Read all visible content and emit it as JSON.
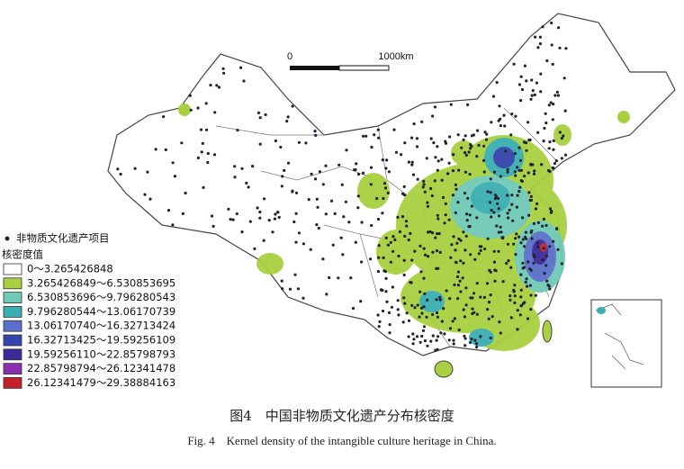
{
  "map": {
    "scale_bar": {
      "start": "0",
      "end": "1000km"
    },
    "legend": {
      "point_label": "非物质文化遗产项目",
      "density_title": "核密度值",
      "classes": [
        {
          "label": "0～3.265426848",
          "color": "#ffffff"
        },
        {
          "label": "3.265426849～6.530853695",
          "color": "#a8d040"
        },
        {
          "label": "6.530853696～9.796280543",
          "color": "#6fcab6"
        },
        {
          "label": "9.796280544～13.06170739",
          "color": "#3aaeb0"
        },
        {
          "label": "13.06170740～16.32713424",
          "color": "#5a70c8"
        },
        {
          "label": "16.32713425～19.59256109",
          "color": "#3344aa"
        },
        {
          "label": "19.59256110～22.85798793",
          "color": "#3b2a98"
        },
        {
          "label": "22.85798794～26.12341478",
          "color": "#8a2fb0"
        },
        {
          "label": "26.12341479～29.38884163",
          "color": "#c4202c"
        }
      ]
    }
  },
  "caption": {
    "zh": "图4　中国非物质文化遗产分布核密度",
    "en": "Fig. 4　Kernel density of the intangible culture heritage in China."
  }
}
